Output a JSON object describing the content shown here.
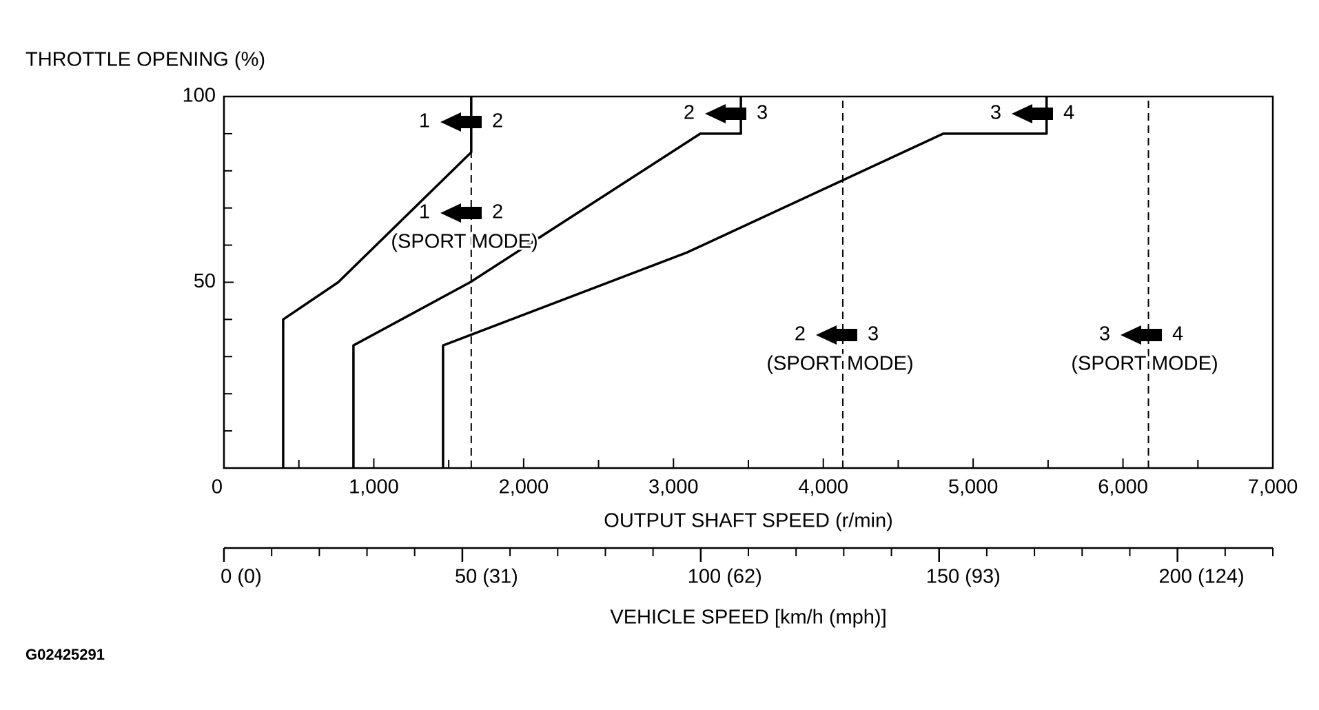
{
  "chart_data": {
    "type": "line",
    "ylabel": "THROTTLE OPENING (%)",
    "xlabel": "OUTPUT SHAFT SPEED (r/min)",
    "x2label": "VEHICLE SPEED [km/h (mph)]",
    "figure_code": "G02425291",
    "xlim": [
      0,
      7000
    ],
    "ylim": [
      0,
      100
    ],
    "xticks": [
      0,
      {
        "value": 1000,
        "label": "1,000"
      },
      {
        "value": 2000,
        "label": "2,000"
      },
      {
        "value": 3000,
        "label": "3,000"
      },
      {
        "value": 4000,
        "label": "4,000"
      },
      {
        "value": 5000,
        "label": "5,000"
      },
      {
        "value": 6000,
        "label": "6,000"
      },
      {
        "value": 7000,
        "label": "7,000"
      }
    ],
    "xticks_minor": [
      500,
      1500,
      2500,
      3500,
      4500,
      5500,
      6500
    ],
    "yticks": [
      50,
      100
    ],
    "yticks_minor": [
      10,
      20,
      30,
      40,
      60,
      70,
      80,
      90
    ],
    "x2lim": [
      0,
      220
    ],
    "x2ticks": [
      {
        "value": 0,
        "label": "0 (0)"
      },
      {
        "value": 50,
        "label": "50 (31)"
      },
      {
        "value": 100,
        "label": "100 (62)"
      },
      {
        "value": 150,
        "label": "150 (93)"
      },
      {
        "value": 200,
        "label": "200 (124)"
      }
    ],
    "x2ticks_minor": [
      10,
      20,
      30,
      40,
      60,
      70,
      80,
      90,
      110,
      120,
      130,
      140,
      160,
      170,
      180,
      190,
      210,
      220
    ],
    "series": [
      {
        "color": "#000000",
        "x": [
          395,
          395,
          762,
          1650,
          1650
        ],
        "values": [
          0,
          40,
          50,
          85,
          100
        ]
      },
      {
        "color": "#000000",
        "x": [
          864,
          864,
          1643,
          3179,
          3450,
          3450
        ],
        "values": [
          0,
          33,
          50,
          90,
          90,
          100
        ]
      },
      {
        "color": "#000000",
        "x": [
          1462,
          1462,
          3089,
          4800,
          5490,
          5490
        ],
        "values": [
          0,
          33,
          58,
          90,
          90,
          100
        ]
      }
    ],
    "reference_lines": [
      {
        "color": "#000000",
        "dashed": true,
        "x": [
          1650,
          1650
        ],
        "values": [
          0,
          100
        ]
      },
      {
        "color": "#000000",
        "dashed": true,
        "x": [
          4130,
          4130
        ],
        "values": [
          0,
          100
        ]
      },
      {
        "color": "#000000",
        "dashed": true,
        "x": [
          6170,
          6170
        ],
        "values": [
          0,
          100
        ]
      }
    ],
    "annotations": [
      {
        "from": "1",
        "to": "2"
      },
      {
        "from": "2",
        "to": "3"
      },
      {
        "from": "3",
        "to": "4"
      },
      {
        "from": "1",
        "to": "2",
        "mode": "(SPORT MODE)"
      },
      {
        "from": "2",
        "to": "3",
        "mode": "(SPORT MODE)"
      },
      {
        "from": "3",
        "to": "4",
        "mode": "(SPORT MODE)"
      }
    ]
  }
}
